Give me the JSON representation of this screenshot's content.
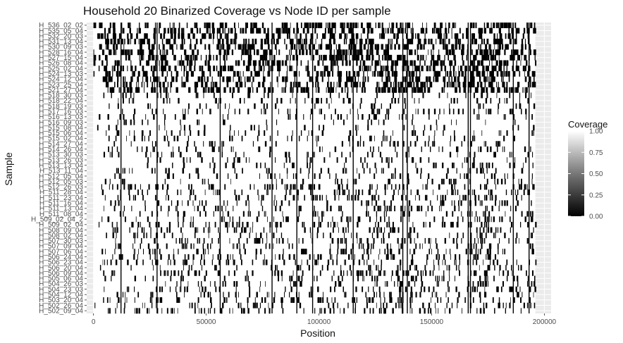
{
  "chart_data": {
    "type": "heatmap",
    "title": "Household 20 Binarized Coverage vs Node ID per sample",
    "xlabel": "Position",
    "ylabel": "Sample",
    "x_ticks": [
      0,
      50000,
      100000,
      150000,
      200000
    ],
    "x_tick_labels": [
      "0",
      "50000",
      "100000",
      "150000",
      "200000"
    ],
    "xlim": [
      -3000,
      203000
    ],
    "data_x_range": [
      0,
      196000
    ],
    "samples": [
      "H_536_02_02",
      "H_535_05_04",
      "H_532_20_03",
      "H_531_13_04",
      "H_530_09_03",
      "H_528_16_04",
      "H_527_15_04",
      "H_526_08_04",
      "H_525_02_04",
      "H_524_13_03",
      "H_524_12_04",
      "H_523_25_04",
      "H_521_27_04",
      "H_518_30_03",
      "H_518_22_04",
      "H_518_19_03",
      "H_517_16_03",
      "H_516_13_03",
      "H_516_09_03",
      "H_515_08_04",
      "H_515_06_04",
      "H_515_02_04",
      "H_514_27_04",
      "H_514_26_04",
      "H_513_30_03",
      "H_513_26_03",
      "H_513_13_04",
      "H_513_11_04",
      "H_512_05_04",
      "H_512_05_03",
      "H_512_26_03",
      "H_511_28_04",
      "H_511_23_04",
      "H_511_16_04",
      "H_511_13_04",
      "H_511_08_04",
      "H_509_02_04_2",
      "H_509_02_04",
      "H_508_09_04",
      "H_508_02_04",
      "H_507_30_03",
      "H_507_09_04",
      "H_507_06_04",
      "H_506_24_04",
      "H_506_23_04",
      "H_506_20_04",
      "H_506_09_04",
      "H_505_06_04",
      "H_504_26_03",
      "H_504_23_03",
      "H_504_12_04",
      "H_503_20_04",
      "H_502_26_04",
      "H_502_09_04"
    ],
    "value_range": [
      0,
      1
    ],
    "legend": {
      "title": "Coverage",
      "ticks": [
        1.0,
        0.75,
        0.5,
        0.25,
        0.0
      ],
      "tick_labels": [
        "1.00",
        "0.75",
        "0.50",
        "0.25",
        "0.00"
      ],
      "placement": "right"
    },
    "colors": {
      "high": "#ffffff",
      "low": "#000000",
      "panel": "#ebebeb",
      "grid": "#ffffff"
    },
    "note_values": "binary (0 = not covered, 1 = covered); cell-level values are too dense to transcribe, pattern generated procedurally",
    "uncovered_segments_approx": [
      {
        "rows": "top 13 samples",
        "density": "high"
      },
      {
        "rows": "middle samples",
        "density": "medium"
      },
      {
        "rows": "bottom samples",
        "density": "medium"
      }
    ],
    "vertical_stripes_x": [
      12000,
      28000,
      56000,
      79000,
      90000,
      97000,
      115000,
      137000,
      139000,
      166000,
      167000,
      186000,
      193000
    ]
  }
}
